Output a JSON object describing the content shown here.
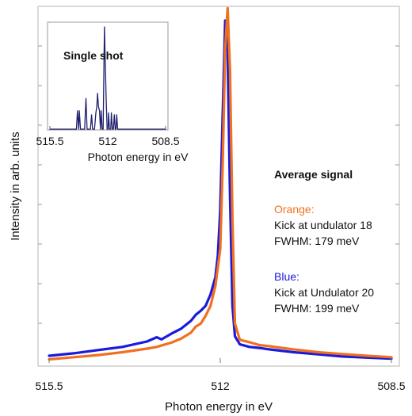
{
  "chart_data": [
    {
      "id": "main",
      "type": "line",
      "title": "",
      "xlabel": "Photon energy in eV",
      "ylabel": "Intensity in arb. units",
      "x_reversed": true,
      "xlim": [
        515.5,
        508.5
      ],
      "ylim": [
        0,
        1.0
      ],
      "x_ticks": [
        515.5,
        512,
        508.5
      ],
      "x_tick_labels": [
        "515.5",
        "512",
        "508.5"
      ],
      "grid": false,
      "series": [
        {
          "name": "Blue",
          "color": "#1a1adc",
          "x": [
            515.5,
            515.0,
            514.5,
            514.0,
            513.5,
            513.3,
            513.2,
            513.0,
            512.8,
            512.6,
            512.5,
            512.4,
            512.3,
            512.2,
            512.1,
            512.05,
            512.0,
            511.95,
            511.9,
            511.85,
            511.8,
            511.75,
            511.7,
            511.6,
            511.4,
            511.2,
            511.0,
            510.5,
            510.0,
            509.5,
            509.0,
            508.5
          ],
          "y": [
            0.02,
            0.027,
            0.036,
            0.045,
            0.06,
            0.072,
            0.066,
            0.082,
            0.096,
            0.118,
            0.135,
            0.146,
            0.16,
            0.192,
            0.24,
            0.3,
            0.43,
            0.7,
            0.96,
            0.87,
            0.47,
            0.16,
            0.075,
            0.052,
            0.045,
            0.042,
            0.038,
            0.03,
            0.024,
            0.018,
            0.015,
            0.012
          ]
        },
        {
          "name": "Orange",
          "color": "#f07020",
          "x": [
            515.5,
            515.0,
            514.5,
            514.0,
            513.5,
            513.3,
            513.0,
            512.8,
            512.6,
            512.5,
            512.4,
            512.3,
            512.2,
            512.1,
            512.0,
            511.95,
            511.9,
            511.85,
            511.8,
            511.75,
            511.7,
            511.6,
            511.4,
            511.2,
            511.0,
            510.5,
            510.0,
            509.5,
            509.0,
            508.5
          ],
          "y": [
            0.01,
            0.016,
            0.022,
            0.03,
            0.04,
            0.045,
            0.057,
            0.068,
            0.085,
            0.102,
            0.11,
            0.132,
            0.16,
            0.215,
            0.32,
            0.56,
            0.88,
            0.995,
            0.82,
            0.4,
            0.11,
            0.065,
            0.058,
            0.05,
            0.047,
            0.038,
            0.03,
            0.025,
            0.02,
            0.016
          ]
        }
      ]
    },
    {
      "id": "inset",
      "type": "line",
      "title": "Single shot",
      "xlabel": "Photon energy in eV",
      "x_reversed": true,
      "xlim": [
        515.5,
        508.5
      ],
      "ylim": [
        0,
        1.0
      ],
      "x_ticks": [
        515.5,
        512,
        508.5
      ],
      "x_tick_labels": [
        "515.5",
        "512",
        "508.5"
      ],
      "series": [
        {
          "name": "",
          "color": "#20206e",
          "x": [
            515.5,
            513.9,
            513.83,
            513.76,
            513.72,
            513.65,
            513.58,
            513.4,
            513.32,
            513.25,
            513.05,
            512.98,
            512.92,
            512.8,
            512.72,
            512.66,
            512.62,
            512.56,
            512.5,
            512.44,
            512.4,
            512.34,
            512.28,
            512.2,
            512.1,
            512.04,
            511.98,
            511.95,
            511.9,
            511.82,
            511.78,
            511.72,
            511.66,
            511.6,
            511.55,
            511.5,
            511.46,
            511.4,
            511.34,
            511.0,
            508.5
          ],
          "y": [
            0,
            0,
            0.18,
            0,
            0.18,
            0,
            0,
            0,
            0.3,
            0,
            0,
            0.14,
            0,
            0,
            0.16,
            0.22,
            0.35,
            0.22,
            0.18,
            0,
            0.18,
            0,
            0,
            1.0,
            0.32,
            0,
            0,
            0.16,
            0,
            0,
            0.16,
            0,
            0,
            0.14,
            0,
            0,
            0.14,
            0,
            0,
            0,
            0
          ]
        }
      ]
    }
  ],
  "legend": {
    "heading": "Average signal",
    "orange": {
      "name": "Orange:",
      "line1": "Kick at undulator 18",
      "line2": "FWHM: 179 meV",
      "color": "#f07020"
    },
    "blue": {
      "name": "Blue:",
      "line1": "Kick at Undulator 20",
      "line2": "FWHM: 199 meV",
      "color": "#1a1adc"
    }
  }
}
